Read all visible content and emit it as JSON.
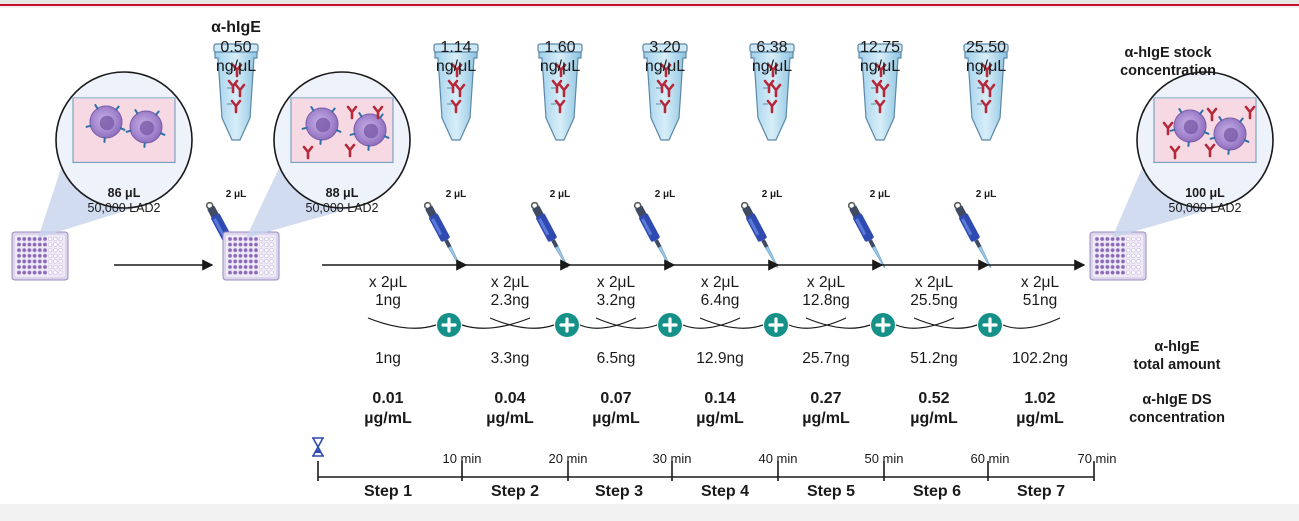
{
  "top_conc": {
    "label": "α-hIgE",
    "values": [
      "0.50",
      "1.14",
      "1.60",
      "3.20",
      "6.38",
      "12.75",
      "25.50"
    ],
    "unit": "ng/μL"
  },
  "labels": {
    "stock": [
      "α-hIgE stock",
      "concentration"
    ],
    "total": [
      "α-hIgE",
      "total amount"
    ],
    "ds": [
      "α-hIgE DS",
      "concentration"
    ]
  },
  "tube_volume": "2 μL",
  "wells": [
    {
      "volume": "86 μL",
      "cells": "50,000 LAD2"
    },
    {
      "volume": "88 μL",
      "cells": "50,000 LAD2"
    },
    {
      "volume": "100 μL",
      "cells": "50,000 LAD2"
    }
  ],
  "additions": [
    {
      "vol": "x 2μL",
      "amount": "1ng"
    },
    {
      "vol": "x 2μL",
      "amount": "2.3ng"
    },
    {
      "vol": "x 2μL",
      "amount": "3.2ng"
    },
    {
      "vol": "x 2μL",
      "amount": "6.4ng"
    },
    {
      "vol": "x 2μL",
      "amount": "12.8ng"
    },
    {
      "vol": "x 2μL",
      "amount": "25.5ng"
    },
    {
      "vol": "x 2μL",
      "amount": "51ng"
    }
  ],
  "totals": [
    "1ng",
    "3.3ng",
    "6.5ng",
    "12.9ng",
    "25.7ng",
    "51.2ng",
    "102.2ng"
  ],
  "ds_conc": {
    "values": [
      "0.01",
      "0.04",
      "0.07",
      "0.14",
      "0.27",
      "0.52",
      "1.02"
    ],
    "unit": "µg/mL"
  },
  "timeline": {
    "times": [
      "10 min",
      "20 min",
      "30 min",
      "40 min",
      "50 min",
      "60 min",
      "70 min"
    ],
    "steps": [
      "Step 1",
      "Step 2",
      "Step 3",
      "Step 4",
      "Step 5",
      "Step 6",
      "Step 7"
    ]
  },
  "colors": {
    "accent_red": "#c8102e",
    "plus_teal": "#16918a",
    "antibody_red": "#b5283a",
    "cell_purple": "#8a68b8",
    "well_pink": "#f6d9e2",
    "pipette_blue": "#2f4ab0"
  }
}
